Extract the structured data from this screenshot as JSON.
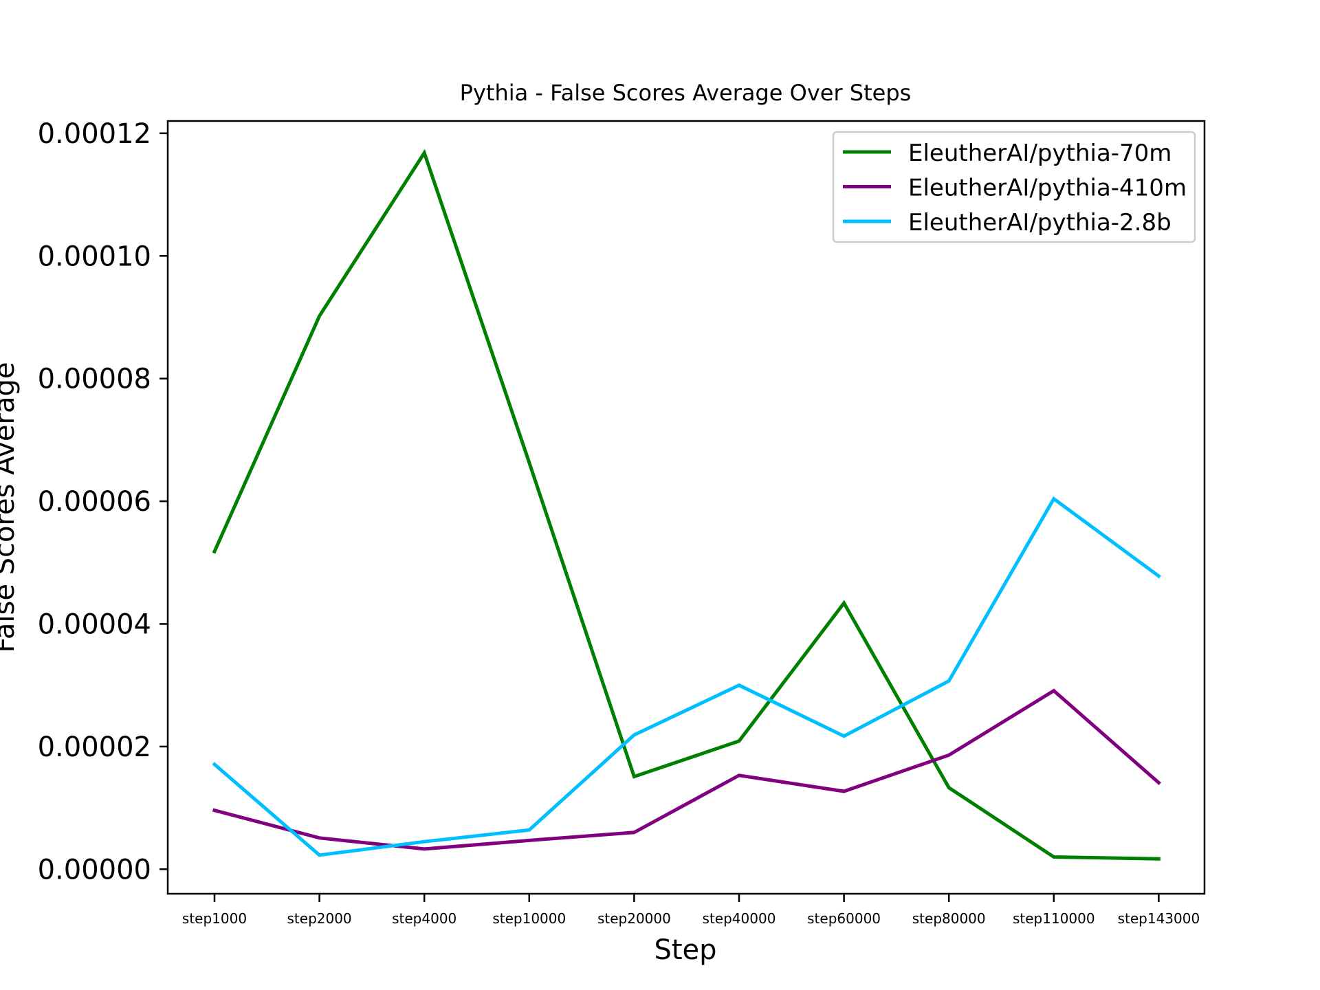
{
  "chart_data": {
    "type": "line",
    "title": "Pythia - False Scores Average Over Steps",
    "xlabel": "Step",
    "ylabel": "False Scores Average",
    "categories": [
      "step1000",
      "step2000",
      "step4000",
      "step10000",
      "step20000",
      "step40000",
      "step60000",
      "step80000",
      "step110000",
      "step143000"
    ],
    "ylim": [
      -4e-06,
      0.000122
    ],
    "yticks": [
      0.0,
      2e-05,
      4e-05,
      6e-05,
      8e-05,
      0.0001,
      0.00012
    ],
    "ytick_labels": [
      "0.00000",
      "0.00002",
      "0.00004",
      "0.00006",
      "0.00008",
      "0.00010",
      "0.00012"
    ],
    "grid": false,
    "legend_position": "top-right",
    "series": [
      {
        "name": "EleutherAI/pythia-70m",
        "color": "#008000",
        "values": [
          5.18e-05,
          9.02e-05,
          0.0001168,
          6.63e-05,
          1.51e-05,
          2.09e-05,
          4.34e-05,
          1.33e-05,
          2e-06,
          1.7e-06
        ]
      },
      {
        "name": "EleutherAI/pythia-410m",
        "color": "#800080",
        "values": [
          9.6e-06,
          5.1e-06,
          3.3e-06,
          4.7e-06,
          6e-06,
          1.53e-05,
          1.27e-05,
          1.86e-05,
          2.91e-05,
          1.41e-05
        ]
      },
      {
        "name": "EleutherAI/pythia-2.8b",
        "color": "#00BFFF",
        "values": [
          1.71e-05,
          2.3e-06,
          4.5e-06,
          6.4e-06,
          2.19e-05,
          3e-05,
          2.17e-05,
          3.07e-05,
          6.04e-05,
          4.78e-05
        ]
      }
    ]
  }
}
